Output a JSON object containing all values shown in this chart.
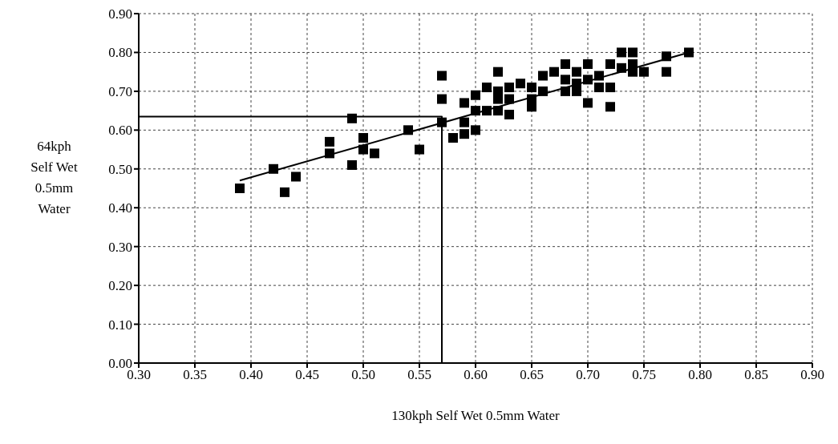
{
  "chart_data": {
    "type": "scatter",
    "xlabel": "130kph Self Wet 0.5mm Water",
    "ylabel": "64kph\nSelf Wet\n0.5mm\nWater",
    "xlim": [
      0.3,
      0.9
    ],
    "xticks": [
      {
        "value": 0.3,
        "label": "0.30"
      },
      {
        "value": 0.35,
        "label": "0.35"
      },
      {
        "value": 0.4,
        "label": "0.40"
      },
      {
        "value": 0.45,
        "label": "0.45"
      },
      {
        "value": 0.5,
        "label": "0.50"
      },
      {
        "value": 0.55,
        "label": "0.55"
      },
      {
        "value": 0.6,
        "label": "0.60"
      },
      {
        "value": 0.65,
        "label": "0.65"
      },
      {
        "value": 0.7,
        "label": "0.70"
      },
      {
        "value": 0.75,
        "label": "0.75"
      },
      {
        "value": 0.8,
        "label": "0.80"
      },
      {
        "value": 0.85,
        "label": "0.85"
      },
      {
        "value": 0.9,
        "label": "0.90"
      }
    ],
    "ylim": [
      0,
      0.9
    ],
    "yticks": [
      {
        "value": 0,
        "label": "0.00"
      },
      {
        "value": 0.1,
        "label": "0.10"
      },
      {
        "value": 0.2,
        "label": "0.20"
      },
      {
        "value": 0.3,
        "label": "0.30"
      },
      {
        "value": 0.4,
        "label": "0.40"
      },
      {
        "value": 0.5,
        "label": "0.50"
      },
      {
        "value": 0.6,
        "label": "0.60"
      },
      {
        "value": 0.7,
        "label": "0.70"
      },
      {
        "value": 0.8,
        "label": "0.80"
      },
      {
        "value": 0.9,
        "label": "0.90"
      }
    ],
    "grid": true,
    "marker": "square",
    "series": [
      {
        "color": "#000000",
        "x": [
          0.39,
          0.42,
          0.43,
          0.44,
          0.47,
          0.47,
          0.49,
          0.49,
          0.5,
          0.5,
          0.51,
          0.54,
          0.55,
          0.57,
          0.57,
          0.57,
          0.58,
          0.59,
          0.59,
          0.59,
          0.6,
          0.6,
          0.6,
          0.61,
          0.61,
          0.62,
          0.62,
          0.62,
          0.62,
          0.63,
          0.63,
          0.63,
          0.64,
          0.65,
          0.65,
          0.65,
          0.66,
          0.66,
          0.67,
          0.68,
          0.68,
          0.68,
          0.69,
          0.69,
          0.69,
          0.7,
          0.7,
          0.7,
          0.71,
          0.71,
          0.72,
          0.72,
          0.72,
          0.73,
          0.73,
          0.74,
          0.74,
          0.74,
          0.75,
          0.77,
          0.77,
          0.79
        ],
        "values": [
          0.45,
          0.5,
          0.44,
          0.48,
          0.57,
          0.54,
          0.63,
          0.51,
          0.58,
          0.55,
          0.54,
          0.6,
          0.55,
          0.74,
          0.68,
          0.62,
          0.58,
          0.59,
          0.62,
          0.67,
          0.6,
          0.65,
          0.69,
          0.65,
          0.71,
          0.65,
          0.68,
          0.7,
          0.75,
          0.64,
          0.68,
          0.71,
          0.72,
          0.66,
          0.68,
          0.71,
          0.7,
          0.74,
          0.75,
          0.7,
          0.73,
          0.77,
          0.7,
          0.72,
          0.75,
          0.67,
          0.73,
          0.77,
          0.71,
          0.74,
          0.66,
          0.71,
          0.77,
          0.76,
          0.8,
          0.75,
          0.77,
          0.8,
          0.75,
          0.75,
          0.79,
          0.8
        ]
      },
      {
        "type": "line",
        "color": "#000000",
        "marker": "none",
        "x": [
          0.39,
          0.79
        ],
        "values": [
          0.47,
          0.8
        ]
      },
      {
        "type": "line",
        "color": "#000000",
        "marker": "none",
        "x": [
          0.3,
          0.57,
          0.57
        ],
        "values": [
          0.635,
          0.635,
          0
        ]
      }
    ]
  }
}
